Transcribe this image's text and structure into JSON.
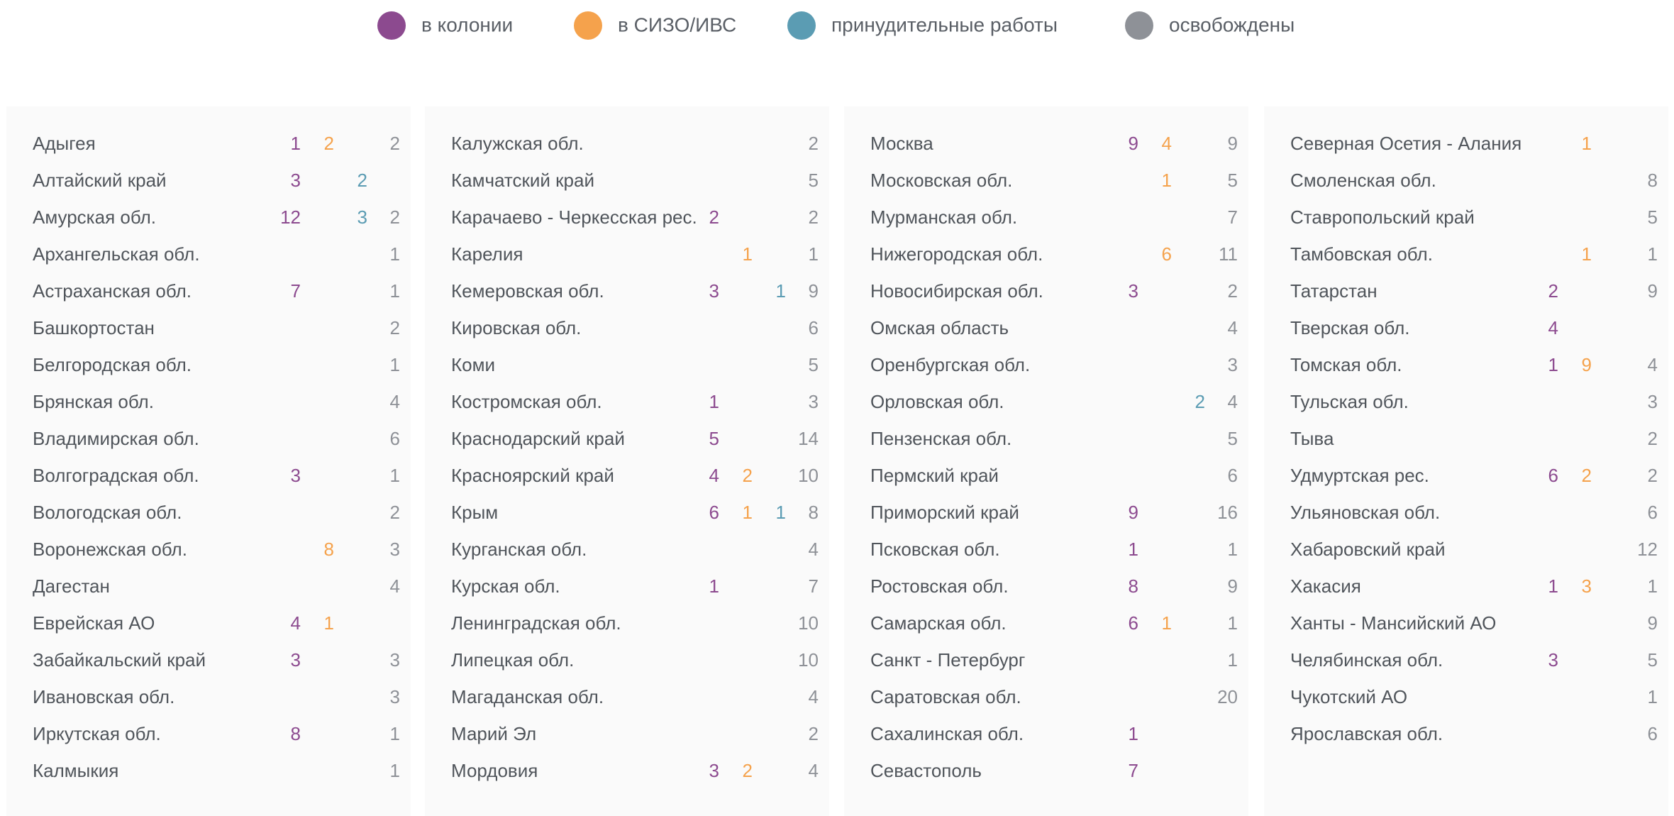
{
  "legend": {
    "items": [
      {
        "label": "в колонии",
        "color": "#8c4a8f"
      },
      {
        "label": "в СИЗО/ИВС",
        "color": "#f5a24c"
      },
      {
        "label": "принудительные работы",
        "color": "#5b9cb3"
      },
      {
        "label": "освобождены",
        "color": "#8e9197"
      }
    ]
  },
  "columns": [
    {
      "rows": [
        [
          "Адыгея",
          1,
          2,
          null,
          2
        ],
        [
          "Алтайский край",
          3,
          null,
          2,
          null
        ],
        [
          "Амурская обл.",
          12,
          null,
          3,
          2
        ],
        [
          "Архангельская обл.",
          null,
          null,
          null,
          1
        ],
        [
          "Астраханская обл.",
          7,
          null,
          null,
          1
        ],
        [
          "Башкортостан",
          null,
          null,
          null,
          2
        ],
        [
          "Белгородская обл.",
          null,
          null,
          null,
          1
        ],
        [
          "Брянская обл.",
          null,
          null,
          null,
          4
        ],
        [
          "Владимирская обл.",
          null,
          null,
          null,
          6
        ],
        [
          "Волгоградская обл.",
          3,
          null,
          null,
          1
        ],
        [
          "Вологодская обл.",
          null,
          null,
          null,
          2
        ],
        [
          "Воронежская обл.",
          null,
          8,
          null,
          3
        ],
        [
          "Дагестан",
          null,
          null,
          null,
          4
        ],
        [
          "Еврейская АО",
          4,
          1,
          null,
          null
        ],
        [
          "Забайкальский край",
          3,
          null,
          null,
          3
        ],
        [
          "Ивановская обл.",
          null,
          null,
          null,
          3
        ],
        [
          "Иркутская обл.",
          8,
          null,
          null,
          1
        ],
        [
          "Калмыкия",
          null,
          null,
          null,
          1
        ]
      ]
    },
    {
      "rows": [
        [
          "Калужская обл.",
          null,
          null,
          null,
          2
        ],
        [
          "Камчатский край",
          null,
          null,
          null,
          5
        ],
        [
          "Карачаево - Черкесская рес.",
          2,
          null,
          null,
          2
        ],
        [
          "Карелия",
          null,
          1,
          null,
          1
        ],
        [
          "Кемеровская обл.",
          3,
          null,
          1,
          9
        ],
        [
          "Кировская обл.",
          null,
          null,
          null,
          6
        ],
        [
          "Коми",
          null,
          null,
          null,
          5
        ],
        [
          "Костромская обл.",
          1,
          null,
          null,
          3
        ],
        [
          "Краснодарский край",
          5,
          null,
          null,
          14
        ],
        [
          "Красноярский край",
          4,
          2,
          null,
          10
        ],
        [
          "Крым",
          6,
          1,
          1,
          8
        ],
        [
          "Курганская обл.",
          null,
          null,
          null,
          4
        ],
        [
          "Курская обл.",
          1,
          null,
          null,
          7
        ],
        [
          "Ленинградская обл.",
          null,
          null,
          null,
          10
        ],
        [
          "Липецкая обл.",
          null,
          null,
          null,
          10
        ],
        [
          "Магаданская обл.",
          null,
          null,
          null,
          4
        ],
        [
          "Марий Эл",
          null,
          null,
          null,
          2
        ],
        [
          "Мордовия",
          3,
          2,
          null,
          4
        ]
      ]
    },
    {
      "rows": [
        [
          "Москва",
          9,
          4,
          null,
          9
        ],
        [
          "Московская обл.",
          null,
          1,
          null,
          5
        ],
        [
          "Мурманская обл.",
          null,
          null,
          null,
          7
        ],
        [
          "Нижегородская обл.",
          null,
          6,
          null,
          11
        ],
        [
          "Новосибирская обл.",
          3,
          null,
          null,
          2
        ],
        [
          "Омская область",
          null,
          null,
          null,
          4
        ],
        [
          "Оренбургская обл.",
          null,
          null,
          null,
          3
        ],
        [
          "Орловская обл.",
          null,
          null,
          2,
          4
        ],
        [
          "Пензенская обл.",
          null,
          null,
          null,
          5
        ],
        [
          "Пермский край",
          null,
          null,
          null,
          6
        ],
        [
          "Приморский край",
          9,
          null,
          null,
          16
        ],
        [
          "Псковская обл.",
          1,
          null,
          null,
          1
        ],
        [
          "Ростовская обл.",
          8,
          null,
          null,
          9
        ],
        [
          "Самарская обл.",
          6,
          1,
          null,
          1
        ],
        [
          "Санкт - Петербург",
          null,
          null,
          null,
          1
        ],
        [
          "Саратовская обл.",
          null,
          null,
          null,
          20
        ],
        [
          "Сахалинская обл.",
          1,
          null,
          null,
          null
        ],
        [
          "Севастополь",
          7,
          null,
          null,
          null
        ]
      ]
    },
    {
      "rows": [
        [
          "Северная Осетия - Алания",
          null,
          1,
          null,
          null
        ],
        [
          "Смоленская обл.",
          null,
          null,
          null,
          8
        ],
        [
          "Ставропольский край",
          null,
          null,
          null,
          5
        ],
        [
          "Тамбовская обл.",
          null,
          1,
          null,
          1
        ],
        [
          "Татарстан",
          2,
          null,
          null,
          9
        ],
        [
          "Тверская обл.",
          4,
          null,
          null,
          null
        ],
        [
          "Томская обл.",
          1,
          9,
          null,
          4
        ],
        [
          "Тульская обл.",
          null,
          null,
          null,
          3
        ],
        [
          "Тыва",
          null,
          null,
          null,
          2
        ],
        [
          "Удмуртская рес.",
          6,
          2,
          null,
          2
        ],
        [
          "Ульяновская обл.",
          null,
          null,
          null,
          6
        ],
        [
          "Хабаровский край",
          null,
          null,
          null,
          12
        ],
        [
          "Хакасия",
          1,
          3,
          null,
          1
        ],
        [
          "Ханты - Мансийский АО",
          null,
          null,
          null,
          9
        ],
        [
          "Челябинская обл.",
          3,
          null,
          null,
          5
        ],
        [
          "Чукотский АО",
          null,
          null,
          null,
          1
        ],
        [
          "Ярославская обл.",
          null,
          null,
          null,
          6
        ]
      ]
    }
  ]
}
